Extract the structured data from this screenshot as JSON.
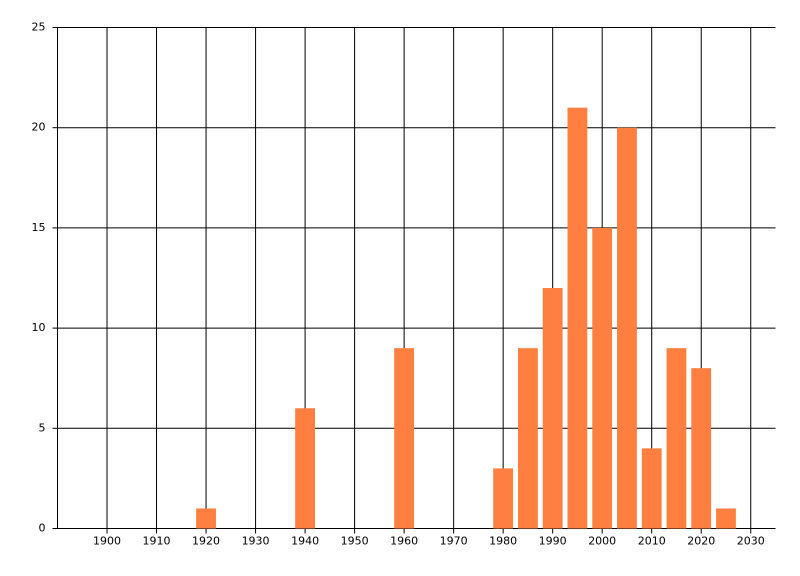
{
  "chart_data": {
    "type": "bar",
    "x": [
      1920,
      1940,
      1960,
      1980,
      1985,
      1990,
      1995,
      2000,
      2005,
      2010,
      2015,
      2020,
      2025
    ],
    "values": [
      1,
      6,
      9,
      3,
      9,
      12,
      21,
      15,
      20,
      4,
      9,
      8,
      1
    ],
    "color": "#ff7f40",
    "xlim": [
      1890,
      2035
    ],
    "xticks": [
      1900,
      1910,
      1920,
      1930,
      1940,
      1950,
      1960,
      1970,
      1980,
      1990,
      2000,
      2010,
      2020,
      2030
    ],
    "ylim": [
      0,
      25
    ],
    "yticks": [
      0,
      5,
      10,
      15,
      20,
      25
    ],
    "grid": true
  }
}
